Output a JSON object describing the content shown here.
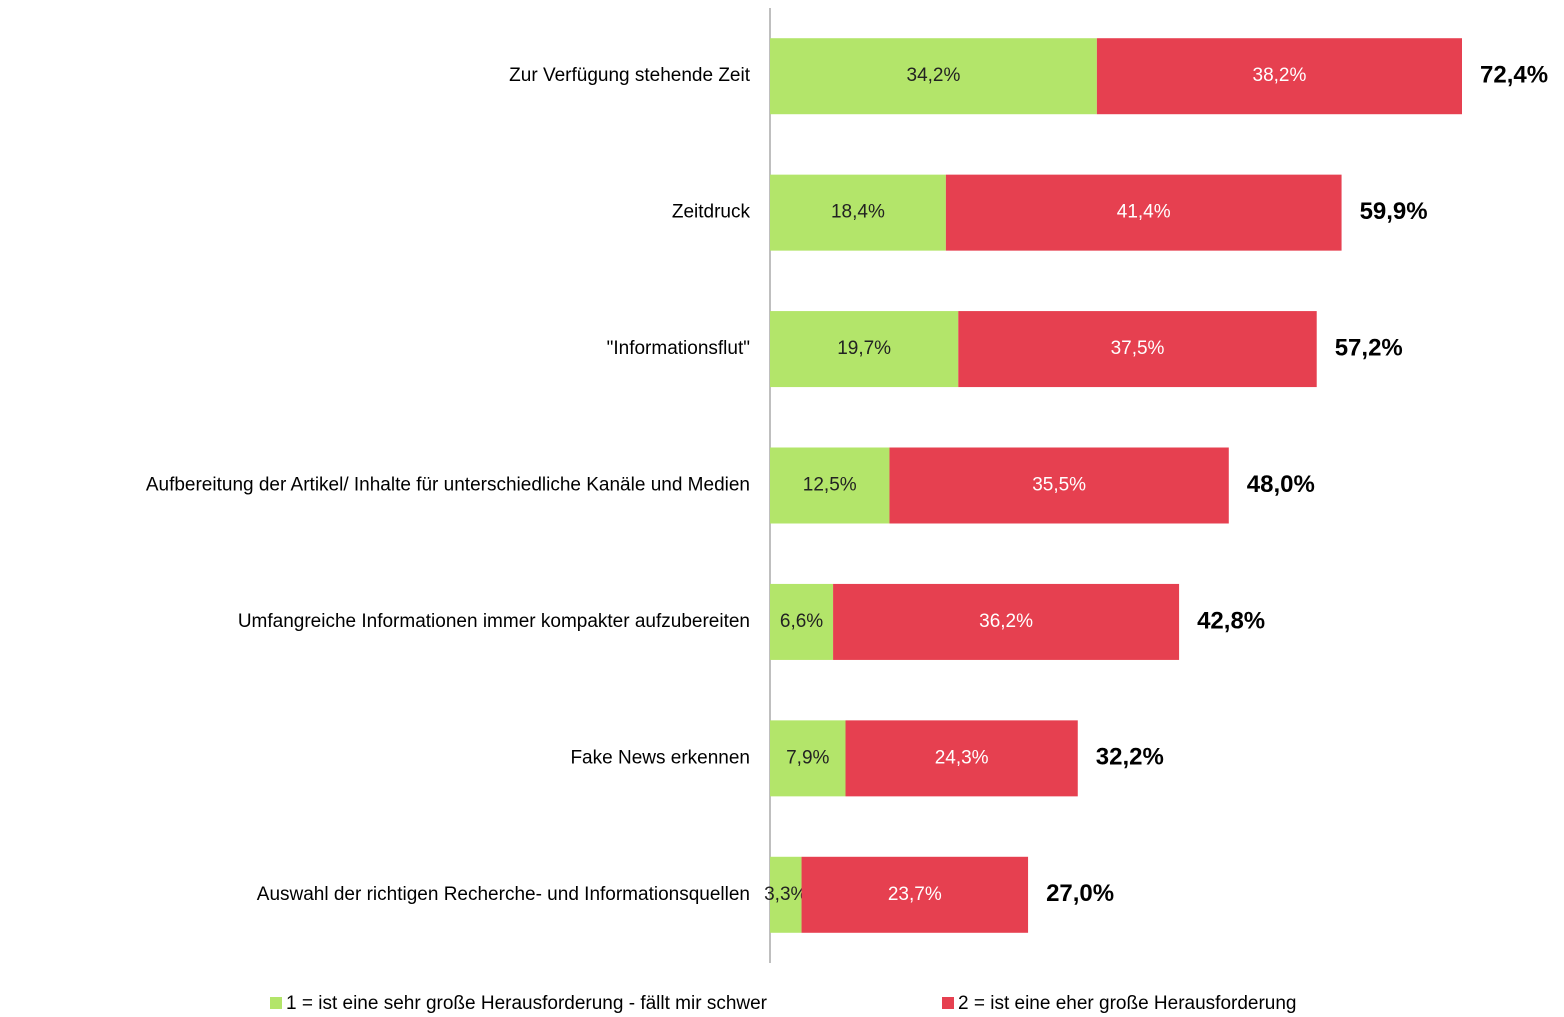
{
  "chart_data": {
    "type": "stacked-bar-horizontal",
    "categories": [
      "Zur Verfügung stehende Zeit",
      "Zeitdruck",
      "\"Informationsflut\"",
      "Aufbereitung der Artikel/ Inhalte für unterschiedliche Kanäle und Medien",
      "Umfangreiche Informationen immer kompakter aufzubereiten",
      "Fake News erkennen",
      "Auswahl der richtigen Recherche- und Informationsquellen"
    ],
    "series": [
      {
        "name": "1 = ist eine sehr große Herausforderung - fällt mir schwer",
        "color": "#b3e56a",
        "values": [
          34.2,
          18.4,
          19.7,
          12.5,
          6.6,
          7.9,
          3.3
        ],
        "value_labels": [
          "34,2%",
          "18,4%",
          "19,7%",
          "12,5%",
          "6,6%",
          "7,9%",
          "3,3%"
        ]
      },
      {
        "name": "2 = ist eine eher große Herausforderung",
        "color": "#e64050",
        "values": [
          38.2,
          41.4,
          37.5,
          35.5,
          36.2,
          24.3,
          23.7
        ],
        "value_labels": [
          "38,2%",
          "41,4%",
          "37,5%",
          "35,5%",
          "36,2%",
          "24,3%",
          "23,7%"
        ]
      }
    ],
    "totals": [
      72.4,
      59.9,
      57.2,
      48.0,
      42.8,
      32.2,
      27.0
    ],
    "total_labels": [
      "72,4%",
      "59,9%",
      "57,2%",
      "48,0%",
      "42,8%",
      "32,2%",
      "27,0%"
    ],
    "legend": "bottom"
  }
}
